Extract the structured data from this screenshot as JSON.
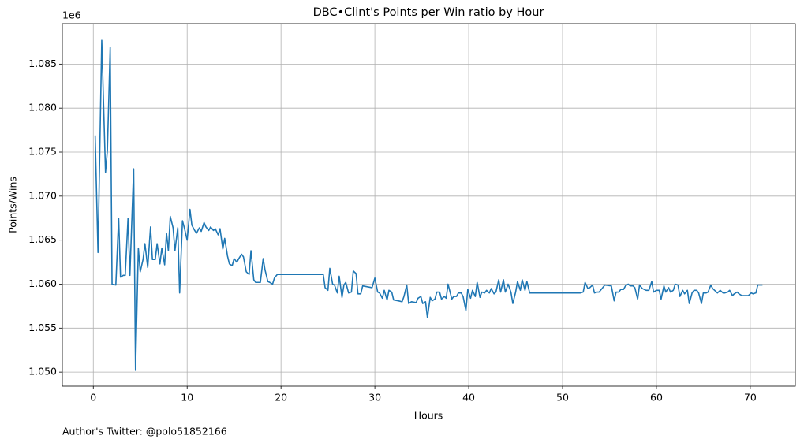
{
  "chart_data": {
    "type": "line",
    "title": "DBC•Clint's Points per Win ratio by Hour",
    "xlabel": "Hours",
    "ylabel": "Points/Wins",
    "y_offset_label": "1e6",
    "footnote": "Author's Twitter: @polo51852166",
    "xlim": [
      -3.3,
      74.8
    ],
    "ylim": [
      1.0484,
      1.0896
    ],
    "xticks": [
      0,
      10,
      20,
      30,
      40,
      50,
      60,
      70
    ],
    "yticks": [
      {
        "value": 1.05,
        "label": "1.050"
      },
      1.055,
      {
        "value": 1.06,
        "label": "1.060"
      },
      1.065,
      {
        "value": 1.07,
        "label": "1.070"
      },
      1.075,
      {
        "value": 1.08,
        "label": "1.080"
      },
      1.085
    ],
    "grid": true,
    "x": [
      0.2,
      0.5,
      0.9,
      1.3,
      1.5,
      1.8,
      2.0,
      2.4,
      2.7,
      2.9,
      3.2,
      3.4,
      3.7,
      3.9,
      4.3,
      4.5,
      4.8,
      5.0,
      5.3,
      5.5,
      5.8,
      6.1,
      6.3,
      6.6,
      6.8,
      7.1,
      7.3,
      7.6,
      7.8,
      8.0,
      8.2,
      8.5,
      8.7,
      9.0,
      9.2,
      9.5,
      9.7,
      10.0,
      10.3,
      10.5,
      10.8,
      11.0,
      11.3,
      11.5,
      11.8,
      12.0,
      12.3,
      12.5,
      12.8,
      13.0,
      13.3,
      13.5,
      13.8,
      14.0,
      14.3,
      14.5,
      14.8,
      15.0,
      15.3,
      15.5,
      15.8,
      16.0,
      16.3,
      16.6,
      16.8,
      17.1,
      17.3,
      17.6,
      17.8,
      18.1,
      18.3,
      18.6,
      18.8,
      19.1,
      19.3,
      19.6,
      19.8,
      24.5,
      24.7,
      25.0,
      25.2,
      25.5,
      25.7,
      26.0,
      26.2,
      26.5,
      26.7,
      26.9,
      27.2,
      27.5,
      27.7,
      28.0,
      28.2,
      28.5,
      28.7,
      29.2,
      29.7,
      30.0,
      30.3,
      30.5,
      30.8,
      31.0,
      31.3,
      31.5,
      31.8,
      32.0,
      32.5,
      32.9,
      33.1,
      33.4,
      33.6,
      33.9,
      34.4,
      34.6,
      34.9,
      35.1,
      35.4,
      35.6,
      35.9,
      36.1,
      36.4,
      36.6,
      36.9,
      37.1,
      37.4,
      37.6,
      37.8,
      38.2,
      38.4,
      38.7,
      38.9,
      39.2,
      39.4,
      39.7,
      39.9,
      40.2,
      40.4,
      40.7,
      40.9,
      41.2,
      41.4,
      41.7,
      41.9,
      42.2,
      42.4,
      42.7,
      42.9,
      43.2,
      43.4,
      43.7,
      43.9,
      44.2,
      44.5,
      44.7,
      45.0,
      45.2,
      45.5,
      45.7,
      46.0,
      46.2,
      46.5,
      51.9,
      52.2,
      52.4,
      52.7,
      52.9,
      53.2,
      53.4,
      53.7,
      53.9,
      54.2,
      54.5,
      55.2,
      55.5,
      55.7,
      56.0,
      56.2,
      56.5,
      56.7,
      57.0,
      57.2,
      57.5,
      57.7,
      58.0,
      58.2,
      58.5,
      58.9,
      59.2,
      59.5,
      59.7,
      60.0,
      60.3,
      60.5,
      60.8,
      61.0,
      61.3,
      61.5,
      61.8,
      62.0,
      62.3,
      62.5,
      62.8,
      63.0,
      63.3,
      63.5,
      63.8,
      64.0,
      64.3,
      64.5,
      64.8,
      65.0,
      65.3,
      65.5,
      65.8,
      66.0,
      66.3,
      66.5,
      66.8,
      67.1,
      67.3,
      67.6,
      67.8,
      68.1,
      68.3,
      68.6,
      68.8,
      69.1,
      69.3,
      69.6,
      69.8,
      70.1,
      70.3,
      70.6,
      70.8,
      71.3
    ],
    "series": [
      {
        "color": "#1f77b4",
        "values": [
          1.0769,
          1.0636,
          1.0877,
          1.0727,
          1.0752,
          1.0869,
          1.06,
          1.0599,
          1.0675,
          1.0608,
          1.061,
          1.061,
          1.0675,
          1.061,
          1.0731,
          1.0502,
          1.0641,
          1.0614,
          1.0628,
          1.0646,
          1.0619,
          1.0665,
          1.0628,
          1.0628,
          1.0646,
          1.0623,
          1.0641,
          1.0622,
          1.0658,
          1.0638,
          1.0677,
          1.0664,
          1.0638,
          1.0664,
          1.059,
          1.0672,
          1.0664,
          1.065,
          1.0685,
          1.0667,
          1.0661,
          1.0658,
          1.0664,
          1.066,
          1.067,
          1.0665,
          1.0661,
          1.0665,
          1.0661,
          1.0663,
          1.0656,
          1.0663,
          1.064,
          1.0652,
          1.0632,
          1.0623,
          1.0621,
          1.0629,
          1.0625,
          1.0629,
          1.0634,
          1.0631,
          1.0614,
          1.0611,
          1.0638,
          1.0605,
          1.0602,
          1.0602,
          1.0602,
          1.0629,
          1.0616,
          1.0603,
          1.0602,
          1.06,
          1.0607,
          1.0611,
          1.0611,
          1.0611,
          1.0596,
          1.0593,
          1.0618,
          1.06,
          1.0599,
          1.059,
          1.0609,
          1.0585,
          1.0599,
          1.0602,
          1.059,
          1.0591,
          1.0615,
          1.0612,
          1.0589,
          1.0589,
          1.0598,
          1.0597,
          1.0596,
          1.0607,
          1.0591,
          1.059,
          1.0584,
          1.0593,
          1.0582,
          1.0593,
          1.0591,
          1.0582,
          1.0581,
          1.058,
          1.0586,
          1.0599,
          1.0578,
          1.058,
          1.0579,
          1.0584,
          1.0586,
          1.0578,
          1.058,
          1.0562,
          1.0585,
          1.0581,
          1.0583,
          1.0591,
          1.0591,
          1.0583,
          1.0586,
          1.0584,
          1.06,
          1.0583,
          1.0586,
          1.0586,
          1.059,
          1.059,
          1.0586,
          1.057,
          1.0594,
          1.0584,
          1.0593,
          1.0586,
          1.0602,
          1.0585,
          1.0591,
          1.059,
          1.0593,
          1.059,
          1.0595,
          1.0589,
          1.0591,
          1.0605,
          1.0591,
          1.0605,
          1.0591,
          1.06,
          1.0591,
          1.0578,
          1.0591,
          1.0603,
          1.0593,
          1.0605,
          1.0593,
          1.0603,
          1.059,
          1.059,
          1.0591,
          1.0602,
          1.0595,
          1.0596,
          1.0599,
          1.059,
          1.0591,
          1.0591,
          1.0595,
          1.0599,
          1.0598,
          1.0581,
          1.0591,
          1.0591,
          1.0594,
          1.0594,
          1.0598,
          1.06,
          1.0598,
          1.0598,
          1.0596,
          1.0583,
          1.0599,
          1.0595,
          1.0593,
          1.0593,
          1.0603,
          1.0591,
          1.0593,
          1.0593,
          1.0583,
          1.0598,
          1.0591,
          1.0596,
          1.0591,
          1.0593,
          1.06,
          1.0599,
          1.0586,
          1.0593,
          1.0589,
          1.0593,
          1.0578,
          1.059,
          1.0593,
          1.0593,
          1.059,
          1.0578,
          1.059,
          1.059,
          1.0591,
          1.0599,
          1.0595,
          1.0592,
          1.059,
          1.0593,
          1.059,
          1.059,
          1.0591,
          1.0593,
          1.0587,
          1.0589,
          1.0591,
          1.0589,
          1.0587,
          1.0587,
          1.0587,
          1.0587,
          1.059,
          1.0589,
          1.059,
          1.0599,
          1.0599
        ]
      }
    ]
  }
}
